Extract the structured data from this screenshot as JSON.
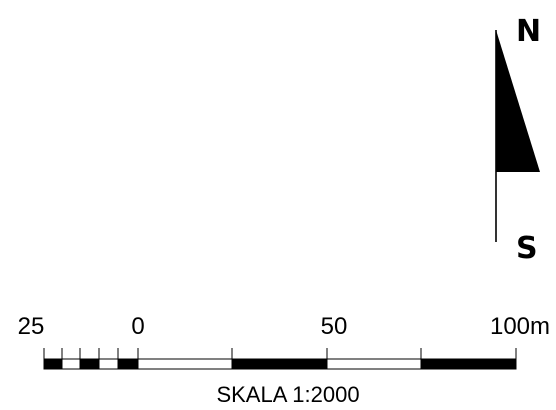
{
  "compass": {
    "north_label": "N",
    "south_label": "S"
  },
  "scale": {
    "caption": "SKALA 1:2000",
    "tick_labels": [
      "25",
      "0",
      "50",
      "100m"
    ],
    "colors": {
      "fill_dark": "#000000",
      "fill_light": "#ffffff"
    }
  }
}
